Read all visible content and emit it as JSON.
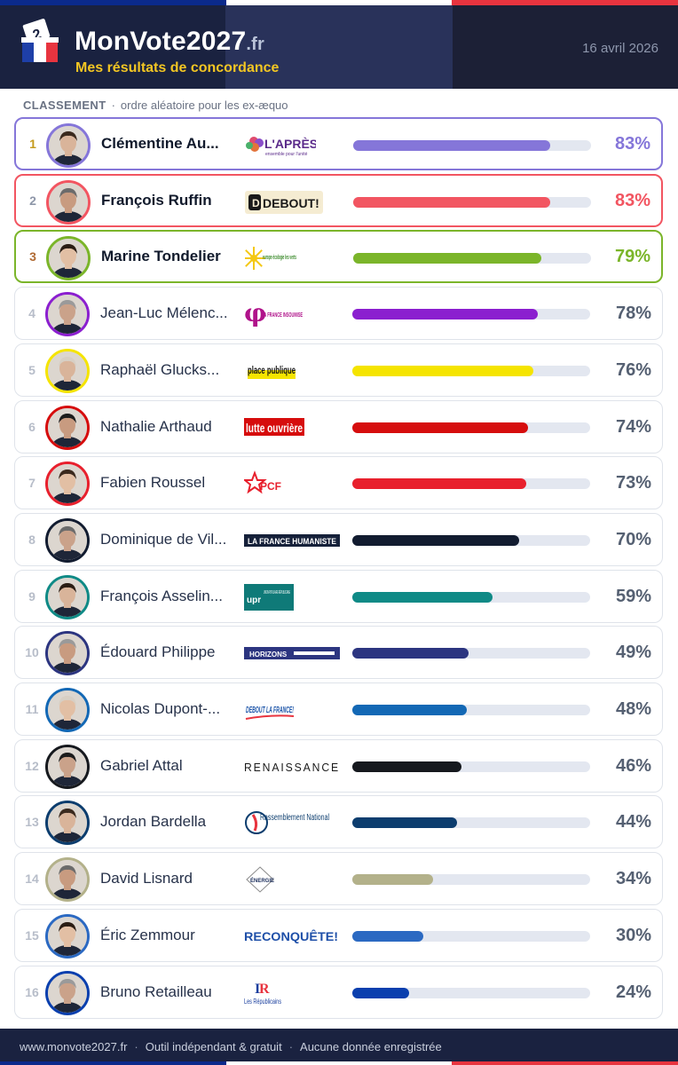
{
  "header": {
    "brand_main": "MonVote2027",
    "brand_tld": ".fr",
    "tagline": "Mes résultats de concordance",
    "date": "16 avril 2026",
    "flag_colors": [
      "#0b2a8c",
      "#ffffff",
      "#e8343f"
    ]
  },
  "subtitle": {
    "label": "CLASSEMENT",
    "note": "ordre aléatoire pour les ex-æquo"
  },
  "candidates": [
    {
      "rank": "1",
      "name": "Clémentine Au...",
      "party": "L'APRÈS",
      "party_sub": "ensemble pour l'unité",
      "percent": "83%",
      "value": 83,
      "color": "#8576d9",
      "rank_color": "#c49a1c",
      "highlight": true
    },
    {
      "rank": "2",
      "name": "François Ruffin",
      "party": "DEBOUT!",
      "percent": "83%",
      "value": 83,
      "color": "#f25561",
      "rank_color": "#8d96a8",
      "highlight": true
    },
    {
      "rank": "3",
      "name": "Marine Tondelier",
      "party": "europe écologie les verts",
      "percent": "79%",
      "value": 79,
      "color": "#7bb52a",
      "rank_color": "#b06a33",
      "highlight": true
    },
    {
      "rank": "4",
      "name": "Jean-Luc Mélenc...",
      "party": "LA FRANCE INSOUMISE",
      "percent": "78%",
      "value": 78,
      "color": "#8b1fcf",
      "highlight": false
    },
    {
      "rank": "5",
      "name": "Raphaël Glucks...",
      "party": "place publique",
      "percent": "76%",
      "value": 76,
      "color": "#f5e400",
      "highlight": false
    },
    {
      "rank": "6",
      "name": "Nathalie Arthaud",
      "party": "lutte ouvrière",
      "percent": "74%",
      "value": 74,
      "color": "#d60d0d",
      "highlight": false
    },
    {
      "rank": "7",
      "name": "Fabien Roussel",
      "party": "PCF",
      "percent": "73%",
      "value": 73,
      "color": "#e8202d",
      "highlight": false
    },
    {
      "rank": "8",
      "name": "Dominique de Vil...",
      "party": "LA FRANCE HUMANISTE",
      "percent": "70%",
      "value": 70,
      "color": "#121c30",
      "highlight": false
    },
    {
      "rank": "9",
      "name": "François Asselin...",
      "party": "UNION POPULAIRE RÉPUBLICAINE",
      "party_short": "upr",
      "percent": "59%",
      "value": 59,
      "color": "#0f8a86",
      "highlight": false
    },
    {
      "rank": "10",
      "name": "Édouard Philippe",
      "party": "HORIZONS",
      "percent": "49%",
      "value": 49,
      "color": "#2c3580",
      "highlight": false
    },
    {
      "rank": "11",
      "name": "Nicolas Dupont-...",
      "party": "DEBOUT LA FRANCE!",
      "percent": "48%",
      "value": 48,
      "color": "#1368b5",
      "highlight": false
    },
    {
      "rank": "12",
      "name": "Gabriel Attal",
      "party": "RENAISSANCE",
      "percent": "46%",
      "value": 46,
      "color": "#16191e",
      "highlight": false
    },
    {
      "rank": "13",
      "name": "Jordan Bardella",
      "party": "Rassemblement National",
      "percent": "44%",
      "value": 44,
      "color": "#0c3d6e",
      "highlight": false
    },
    {
      "rank": "14",
      "name": "David Lisnard",
      "party": "ÉNERGIE",
      "percent": "34%",
      "value": 34,
      "color": "#b3b18a",
      "highlight": false
    },
    {
      "rank": "15",
      "name": "Éric Zemmour",
      "party": "RECONQUÊTE!",
      "percent": "30%",
      "value": 30,
      "color": "#2b69c2",
      "highlight": false
    },
    {
      "rank": "16",
      "name": "Bruno Retailleau",
      "party": "Les Républicains",
      "percent": "24%",
      "value": 24,
      "color": "#0a3fae",
      "highlight": false
    }
  ],
  "footer": {
    "site": "www.monvote2027.fr",
    "tool": "Outil indépendant & gratuit",
    "privacy": "Aucune donnée enregistrée"
  }
}
